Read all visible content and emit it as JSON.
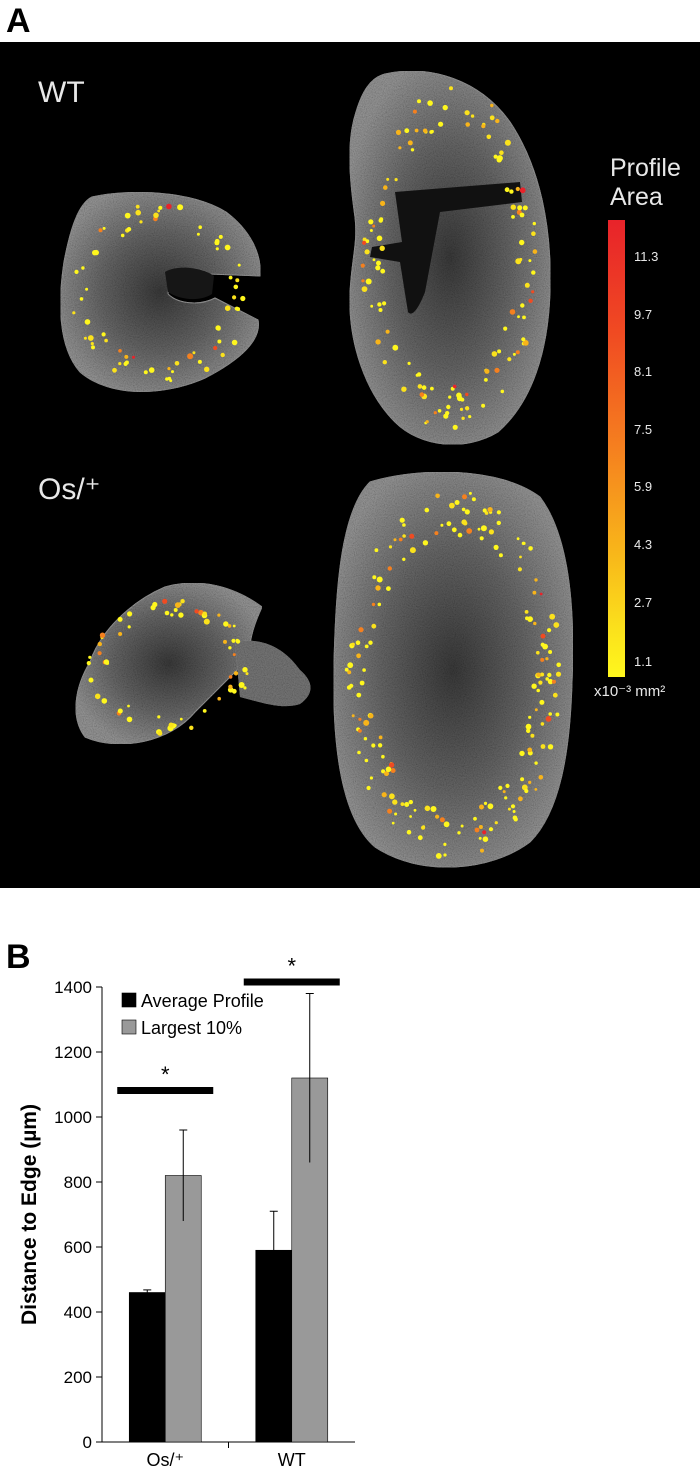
{
  "figure": {
    "panel_a": {
      "letter": "A",
      "labels": {
        "wt": "WT",
        "os": "Os/⁺"
      },
      "legend": {
        "title_line1": "Profile",
        "title_line2": "Area",
        "ticks": [
          "11.3",
          "9.7",
          "8.1",
          "7.5",
          "5.9",
          "4.3",
          "2.7",
          "1.1"
        ],
        "unit": "x10⁻³ mm²",
        "colors": {
          "low": "#fff71d",
          "mid": "#f5801f",
          "high": "#e8232a"
        }
      },
      "colors": {
        "background": "#000000",
        "tissue": "#7d7d7d",
        "lumen": "#141414"
      }
    },
    "panel_b": {
      "letter": "B",
      "significance_marker": "*"
    }
  },
  "chart_data": {
    "type": "bar",
    "categories": [
      "Os/⁺",
      "WT"
    ],
    "series": [
      {
        "name": "Average Profile",
        "values": [
          460,
          590
        ],
        "errors": [
          8,
          120
        ],
        "color": "#000000"
      },
      {
        "name": "Largest 10%",
        "values": [
          820,
          1120
        ],
        "errors": [
          140,
          260
        ],
        "color": "#999999"
      }
    ],
    "ylabel": "Distance to Edge (µm)",
    "xlabel": "",
    "ylim": [
      0,
      1400
    ],
    "yticks": [
      0,
      200,
      400,
      600,
      800,
      1000,
      1200,
      1400
    ],
    "legend_position": "top-left",
    "significance": [
      {
        "category": "Os/⁺",
        "label": "*"
      },
      {
        "category": "WT",
        "label": "*"
      }
    ]
  }
}
